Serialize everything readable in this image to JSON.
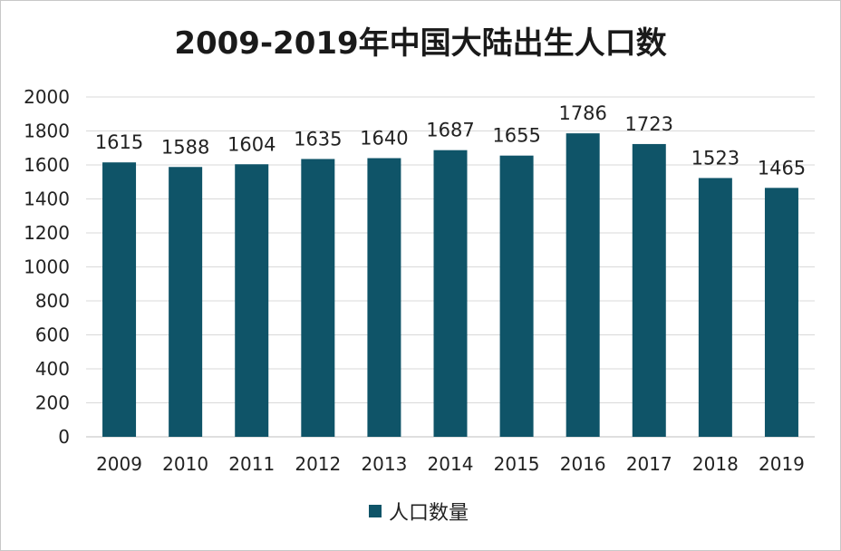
{
  "chart_data": {
    "type": "bar",
    "title": "2009-2019年中国大陆出生人口数",
    "categories": [
      "2009",
      "2010",
      "2011",
      "2012",
      "2013",
      "2014",
      "2015",
      "2016",
      "2017",
      "2018",
      "2019"
    ],
    "series": [
      {
        "name": "人口数量",
        "values": [
          1615,
          1588,
          1604,
          1635,
          1640,
          1687,
          1655,
          1786,
          1723,
          1523,
          1465
        ]
      }
    ],
    "ylim": [
      0,
      2000
    ],
    "yticks": [
      0,
      200,
      400,
      600,
      800,
      1000,
      1200,
      1400,
      1600,
      1800,
      2000
    ],
    "grid": true,
    "legend_position": "bottom",
    "data_labels": true
  },
  "colors": {
    "bar": "#0f5468",
    "grid": "#d9d9d9",
    "axis": "#bfbfbf"
  }
}
